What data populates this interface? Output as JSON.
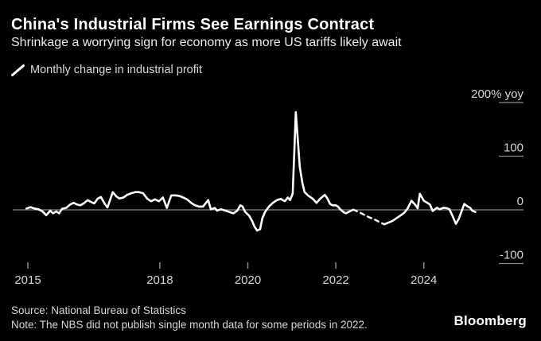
{
  "header": {
    "title": "China's Industrial Firms See Earnings Contract",
    "subtitle": "Shrinkage a worrying sign for economy as more US tariffs likely await"
  },
  "legend": {
    "label": "Monthly change in industrial profit",
    "icon": "line-series-icon"
  },
  "chart_data": {
    "type": "line",
    "title": "Monthly change in industrial profit",
    "unit": "% yoy",
    "x_ticks": [
      2015,
      2018,
      2020,
      2022,
      2024
    ],
    "x_tick_labels": [
      "2015",
      "2018",
      "2020",
      "2022",
      "2024"
    ],
    "y_ticks": [
      200,
      100,
      0,
      -100
    ],
    "y_tick_labels": [
      "200% yoy",
      "100",
      "0",
      "-100"
    ],
    "x_range": [
      2014.6,
      2025.4
    ],
    "ylim": [
      -110,
      225
    ],
    "grid": "zero-line-only",
    "legend_position": "top-left",
    "line_color": "#ffffff",
    "grid_color": "#8a8a8a",
    "label_color": "#d6d6d6",
    "note": "Dashed segment = periods in 2022 when NBS did not publish single month data",
    "series": [
      {
        "name": "Monthly change in industrial profit",
        "segments": [
          {
            "style": "solid",
            "points": [
              [
                2014.97,
                2.5
              ],
              [
                2015.06,
                5
              ],
              [
                2015.15,
                2.5
              ],
              [
                2015.24,
                1
              ],
              [
                2015.33,
                -2.5
              ],
              [
                2015.42,
                -10
              ],
              [
                2015.51,
                -1.5
              ],
              [
                2015.57,
                -6.5
              ],
              [
                2015.65,
                -3
              ],
              [
                2015.71,
                -6.5
              ],
              [
                2015.78,
                2
              ],
              [
                2015.87,
                3.5
              ],
              [
                2015.96,
                10
              ],
              [
                2016.04,
                13
              ],
              [
                2016.12,
                10
              ],
              [
                2016.19,
                8.5
              ],
              [
                2016.27,
                12
              ],
              [
                2016.36,
                18
              ],
              [
                2016.43,
                15
              ],
              [
                2016.51,
                12
              ],
              [
                2016.59,
                21
              ],
              [
                2016.66,
                24
              ],
              [
                2016.75,
                11
              ],
              [
                2016.81,
                4.5
              ],
              [
                2016.93,
                33
              ],
              [
                2017.01,
                25
              ],
              [
                2017.08,
                21
              ],
              [
                2017.17,
                23
              ],
              [
                2017.26,
                28
              ],
              [
                2017.35,
                31
              ],
              [
                2017.44,
                33
              ],
              [
                2017.53,
                33
              ],
              [
                2017.62,
                31
              ],
              [
                2017.71,
                21
              ],
              [
                2017.8,
                16
              ],
              [
                2017.89,
                19.5
              ],
              [
                2017.98,
                16
              ],
              [
                2018.07,
                23
              ],
              [
                2018.16,
                3.5
              ],
              [
                2018.26,
                27
              ],
              [
                2018.35,
                27
              ],
              [
                2018.44,
                26
              ],
              [
                2018.53,
                23
              ],
              [
                2018.62,
                19.5
              ],
              [
                2018.71,
                13
              ],
              [
                2018.8,
                8.5
              ],
              [
                2018.89,
                6
              ],
              [
                2018.98,
                6
              ],
              [
                2019.1,
                18
              ],
              [
                2019.16,
                1
              ],
              [
                2019.25,
                3.5
              ],
              [
                2019.3,
                -1.5
              ],
              [
                2019.39,
                1
              ],
              [
                2019.49,
                -1.5
              ],
              [
                2019.58,
                -4
              ],
              [
                2019.67,
                -6.5
              ],
              [
                2019.76,
                -1.5
              ],
              [
                2019.83,
                8.5
              ],
              [
                2019.88,
                6
              ],
              [
                2019.94,
                -4
              ],
              [
                2020.03,
                -11
              ],
              [
                2020.1,
                -21
              ],
              [
                2020.15,
                -31
              ],
              [
                2020.21,
                -38.5
              ],
              [
                2020.28,
                -36
              ],
              [
                2020.33,
                -16
              ],
              [
                2020.39,
                -4
              ],
              [
                2020.48,
                6
              ],
              [
                2020.57,
                13
              ],
              [
                2020.66,
                18
              ],
              [
                2020.75,
                20.5
              ],
              [
                2020.84,
                16
              ],
              [
                2020.91,
                23
              ],
              [
                2020.96,
                18
              ],
              [
                2021.02,
                30
              ],
              [
                2021.09,
                182
              ],
              [
                2021.18,
                80
              ],
              [
                2021.24,
                50
              ],
              [
                2021.29,
                33
              ],
              [
                2021.38,
                26
              ],
              [
                2021.47,
                21
              ],
              [
                2021.56,
                13
              ],
              [
                2021.65,
                21
              ],
              [
                2021.75,
                28
              ],
              [
                2021.81,
                21
              ],
              [
                2021.87,
                11
              ],
              [
                2021.93,
                8.5
              ],
              [
                2022.0,
                8.5
              ],
              [
                2022.05,
                6
              ],
              [
                2022.1,
                1
              ],
              [
                2022.17,
                -4
              ],
              [
                2022.23,
                -6.5
              ],
              [
                2022.29,
                -4
              ],
              [
                2022.35,
                -1.5
              ],
              [
                2022.4,
                0.5
              ]
            ]
          },
          {
            "style": "dashed",
            "points": [
              [
                2022.4,
                0.5
              ],
              [
                2022.52,
                -4
              ],
              [
                2022.64,
                -9
              ],
              [
                2022.76,
                -14
              ],
              [
                2022.88,
                -18
              ],
              [
                2023.0,
                -23
              ],
              [
                2023.1,
                -27
              ]
            ]
          },
          {
            "style": "solid",
            "points": [
              [
                2023.1,
                -27
              ],
              [
                2023.19,
                -24
              ],
              [
                2023.28,
                -21
              ],
              [
                2023.37,
                -16
              ],
              [
                2023.46,
                -11
              ],
              [
                2023.55,
                -6
              ],
              [
                2023.63,
                2
              ],
              [
                2023.72,
                17
              ],
              [
                2023.8,
                10
              ],
              [
                2023.86,
                3
              ],
              [
                2023.91,
                30
              ],
              [
                2024.0,
                17
              ],
              [
                2024.08,
                13
              ],
              [
                2024.14,
                10
              ],
              [
                2024.2,
                -2
              ],
              [
                2024.3,
                4
              ],
              [
                2024.36,
                1
              ],
              [
                2024.45,
                4
              ],
              [
                2024.53,
                3
              ],
              [
                2024.58,
                1
              ],
              [
                2024.64,
                -9
              ],
              [
                2024.73,
                -26
              ],
              [
                2024.8,
                -16
              ],
              [
                2024.86,
                -2
              ],
              [
                2024.92,
                11
              ],
              [
                2025.0,
                6
              ],
              [
                2025.05,
                4
              ],
              [
                2025.1,
                -1.5
              ],
              [
                2025.17,
                -4
              ]
            ]
          }
        ]
      }
    ]
  },
  "footer": {
    "source": "Source: National Bureau of Statistics",
    "note": "Note: The NBS did not publish single month data for some periods in 2022.",
    "brand": "Bloomberg"
  },
  "colors": {
    "background": "#000000",
    "line": "#ffffff",
    "grid": "#8a8a8a",
    "title_text": "#ffffff",
    "muted_text": "#d6d6d6"
  }
}
